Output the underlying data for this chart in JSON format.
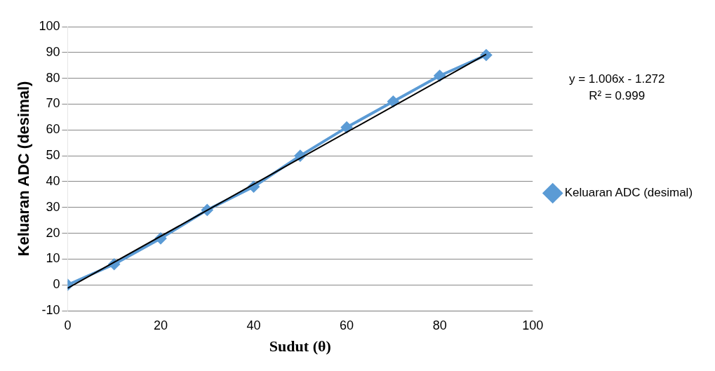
{
  "chart_data": {
    "type": "line",
    "xlabel": "Sudut (θ)",
    "ylabel": "Keluaran ADC (desimal)",
    "x": [
      0,
      10,
      20,
      30,
      40,
      50,
      60,
      70,
      80,
      90
    ],
    "series": [
      {
        "name": "Keluaran ADC (desimal)",
        "color": "#5b9bd5",
        "marker": "diamond",
        "values": [
          0,
          8,
          18,
          29,
          38,
          50,
          61,
          71,
          81,
          89
        ]
      },
      {
        "type": "line",
        "color": "#000000",
        "marker": "none",
        "x": [
          0,
          90
        ],
        "values": [
          -1.3,
          89.3
        ]
      }
    ],
    "xlim": [
      0,
      100
    ],
    "xticks": [
      0,
      20,
      40,
      60,
      80,
      100
    ],
    "ylim": [
      -10,
      100
    ],
    "yticks": [
      -10,
      0,
      10,
      20,
      30,
      40,
      50,
      60,
      70,
      80,
      90,
      100
    ],
    "grid": "y",
    "legend": "right",
    "annotations": [
      "y = 1.006x - 1.272",
      "R² = 0.999"
    ]
  }
}
